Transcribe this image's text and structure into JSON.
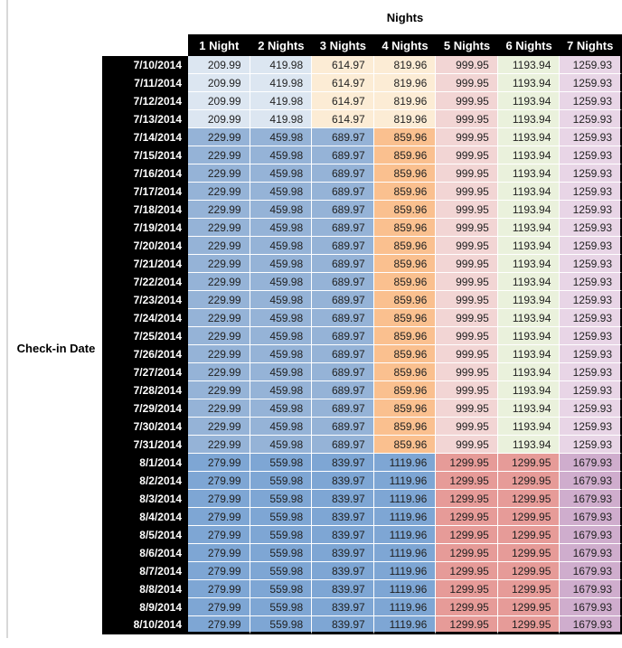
{
  "chart_data": {
    "type": "table",
    "title": "Nights",
    "row_axis_label": "Check-in Date",
    "columns": [
      "1 Night",
      "2 Nights",
      "3 Nights",
      "4 Nights",
      "5 Nights",
      "6 Nights",
      "7 Nights"
    ],
    "row_groups": [
      {
        "dates": [
          "7/10/2014",
          "7/11/2014",
          "7/12/2014",
          "7/13/2014"
        ],
        "values": [
          209.99,
          419.98,
          614.97,
          819.96,
          999.95,
          1193.94,
          1259.93
        ],
        "cell_colors": [
          "pale_blue",
          "pale_blue",
          "pale_orange",
          "pale_orange",
          "pale_pink",
          "pale_green",
          "pale_mauve"
        ]
      },
      {
        "dates": [
          "7/14/2014",
          "7/15/2014",
          "7/16/2014",
          "7/17/2014",
          "7/18/2014",
          "7/19/2014",
          "7/20/2014",
          "7/21/2014",
          "7/22/2014",
          "7/23/2014",
          "7/24/2014",
          "7/25/2014",
          "7/26/2014",
          "7/27/2014",
          "7/28/2014",
          "7/29/2014",
          "7/30/2014",
          "7/31/2014"
        ],
        "values": [
          229.99,
          459.98,
          689.97,
          859.96,
          999.95,
          1193.94,
          1259.93
        ],
        "cell_colors": [
          "med_blue",
          "med_blue",
          "med_blue",
          "med_orange",
          "pale_pink",
          "pale_green",
          "pale_mauve"
        ]
      },
      {
        "dates": [
          "8/1/2014",
          "8/2/2014",
          "8/3/2014",
          "8/4/2014",
          "8/5/2014",
          "8/6/2014",
          "8/7/2014",
          "8/8/2014",
          "8/9/2014",
          "8/10/2014"
        ],
        "values": [
          279.99,
          559.98,
          839.97,
          1119.96,
          1299.95,
          1299.95,
          1679.93
        ],
        "cell_colors": [
          "aug_blue",
          "aug_blue",
          "aug_blue",
          "aug_blue",
          "salmon",
          "salmon",
          "mauve"
        ]
      }
    ]
  },
  "colors": {
    "pale_blue": "#dce6f1",
    "med_blue": "#95b3d7",
    "aug_blue": "#7ea6d4",
    "pale_orange": "#fcecd5",
    "med_orange": "#fac08f",
    "pale_pink": "#f2d5d4",
    "salmon": "#e69b98",
    "pale_green": "#eaf1dc",
    "pale_mauve": "#e8d5e6",
    "mauve": "#cfadcd",
    "header_bg": "#000000",
    "header_text": "#ffffff"
  }
}
